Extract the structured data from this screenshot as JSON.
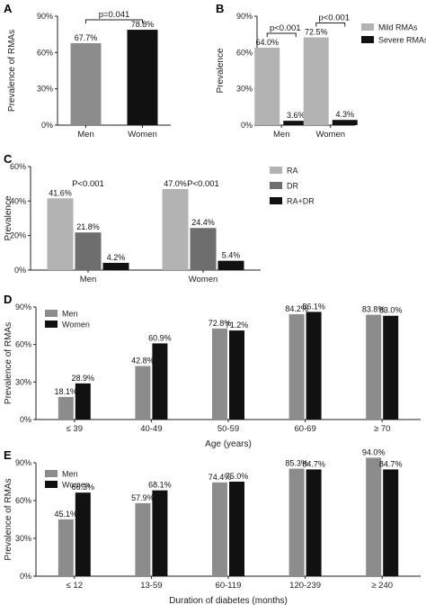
{
  "chart_data": [
    {
      "panel": "A",
      "type": "bar",
      "categories": [
        "Men",
        "Women"
      ],
      "series": [
        {
          "values": [
            67.7,
            78.8
          ],
          "labels": [
            "67.7%",
            "78.8%"
          ],
          "colors": [
            "#8c8c8c",
            "#111111"
          ]
        }
      ],
      "ylabel": "Prevalence of RMAs",
      "xlabel": "",
      "ylim": [
        0,
        90
      ],
      "yticks": [
        "0%",
        "30%",
        "60%",
        "90%"
      ],
      "annotations": [
        {
          "text": "p=0.041",
          "between": [
            0,
            1
          ]
        }
      ]
    },
    {
      "panel": "B",
      "type": "bar",
      "categories": [
        "Men",
        "Women"
      ],
      "series": [
        {
          "name": "Mild RMAs",
          "values": [
            64.0,
            72.5
          ],
          "labels": [
            "64.0%",
            "72.5%"
          ],
          "color": "#b3b3b3"
        },
        {
          "name": "Severe RMAs",
          "values": [
            3.6,
            4.3
          ],
          "labels": [
            "3.6%",
            "4.3%"
          ],
          "color": "#111111"
        }
      ],
      "ylabel": "Prevalence",
      "xlabel": "",
      "ylim": [
        0,
        90
      ],
      "yticks": [
        "0%",
        "30%",
        "60%",
        "90%"
      ],
      "legend_position": "top-right",
      "annotations": [
        {
          "text": "p<0.001",
          "group": 0
        },
        {
          "text": "p<0.001",
          "group": 1
        }
      ]
    },
    {
      "panel": "C",
      "type": "bar",
      "categories": [
        "Men",
        "Women"
      ],
      "series": [
        {
          "name": "RA",
          "values": [
            41.6,
            47.0
          ],
          "labels": [
            "41.6%",
            "47.0%"
          ],
          "color": "#b3b3b3"
        },
        {
          "name": "DR",
          "values": [
            21.8,
            24.4
          ],
          "labels": [
            "21.8%",
            "24.4%"
          ],
          "color": "#6e6e6e"
        },
        {
          "name": "RA+DR",
          "values": [
            4.2,
            5.4
          ],
          "labels": [
            "4.2%",
            "5.4%"
          ],
          "color": "#111111"
        }
      ],
      "ylabel": "Prevalence",
      "xlabel": "",
      "ylim": [
        0,
        60
      ],
      "yticks": [
        "0%",
        "20%",
        "40%",
        "60%"
      ],
      "legend_position": "top-right",
      "annotations": [
        {
          "text": "P<0.001",
          "group": 0
        },
        {
          "text": "P<0.001",
          "group": 1
        }
      ]
    },
    {
      "panel": "D",
      "type": "bar",
      "categories": [
        "≤ 39",
        "40-49",
        "50-59",
        "60-69",
        "≥ 70"
      ],
      "series": [
        {
          "name": "Men",
          "values": [
            18.1,
            42.8,
            72.8,
            84.2,
            83.8
          ],
          "labels": [
            "18.1%",
            "42.8%",
            "72.8%",
            "84.2%",
            "83.8%"
          ],
          "color": "#8c8c8c"
        },
        {
          "name": "Women",
          "values": [
            28.9,
            60.9,
            71.2,
            86.1,
            83.0
          ],
          "labels": [
            "28.9%",
            "60.9%",
            "71.2%",
            "86.1%",
            "83.0%"
          ],
          "color": "#111111"
        }
      ],
      "ylabel": "Prevalence of RMAs",
      "xlabel": "Age (years)",
      "ylim": [
        0,
        90
      ],
      "yticks": [
        "0%",
        "30%",
        "60%",
        "90%"
      ],
      "legend_position": "top-left"
    },
    {
      "panel": "E",
      "type": "bar",
      "categories": [
        "≤ 12",
        "13-59",
        "60-119",
        "120-239",
        "≥ 240"
      ],
      "series": [
        {
          "name": "Men",
          "values": [
            45.1,
            57.9,
            74.4,
            85.3,
            94.0
          ],
          "labels": [
            "45.1%",
            "57.9%",
            "74.4%",
            "85.3%",
            "94.0%"
          ],
          "color": "#8c8c8c"
        },
        {
          "name": "Women",
          "values": [
            66.3,
            68.1,
            75.0,
            84.7,
            84.7
          ],
          "labels": [
            "66.3%",
            "68.1%",
            "75.0%",
            "84.7%",
            "84.7%"
          ],
          "color": "#111111"
        }
      ],
      "ylabel": "Prevalence of RMAs",
      "xlabel": "Duration of diabetes (months)",
      "ylim": [
        0,
        90
      ],
      "yticks": [
        "0%",
        "30%",
        "60%",
        "90%"
      ],
      "legend_position": "top-left"
    }
  ]
}
